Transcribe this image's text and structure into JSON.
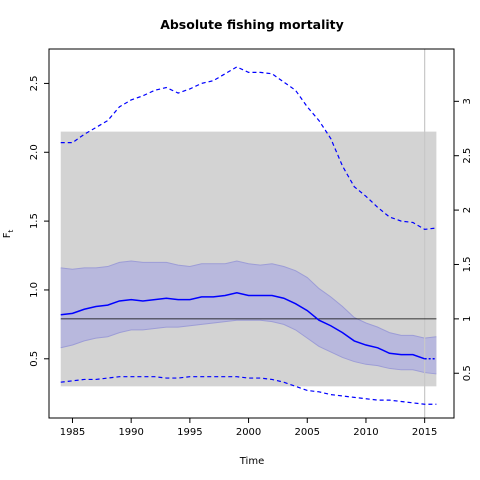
{
  "chart_data": {
    "type": "line",
    "title": "Absolute fishing mortality",
    "xlabel": "Time",
    "ylabel": "F",
    "ylabel_subscript": "t",
    "xlim": [
      1983.0,
      2017.5
    ],
    "ylim": [
      0.07,
      2.75
    ],
    "x_ticks": [
      1985,
      1990,
      1995,
      2000,
      2005,
      2010,
      2015
    ],
    "y_ticks": [
      0.5,
      1.0,
      1.5,
      2.0,
      2.5
    ],
    "y_tick_labels": [
      "0.5",
      "1.0",
      "1.5",
      "2.0",
      "2.5"
    ],
    "y2_ratio": 0.79,
    "y2_ticks": [
      0.5,
      1,
      1.5,
      2,
      2.5,
      3
    ],
    "y2_tick_labels": [
      "0.5",
      "1",
      "1.5",
      "2",
      "2.5",
      "3"
    ],
    "reference_line_y": 0.79,
    "vertical_line_x": 2015,
    "shaded_region": {
      "x": [
        1984,
        2016
      ],
      "y": [
        0.3,
        2.15
      ]
    },
    "colors": {
      "estimate": "#0000ff",
      "ci_fill": "#b8b8dd",
      "ci_edge": "#9d9dd6",
      "region_fill": "#d3d3d3",
      "reference_line": "#000000",
      "vertical_line": "#c8c8c8"
    },
    "series": [
      {
        "role": "estimate",
        "x": [
          1984,
          1985,
          1986,
          1987,
          1988,
          1989,
          1990,
          1991,
          1992,
          1993,
          1994,
          1995,
          1996,
          1997,
          1998,
          1999,
          2000,
          2001,
          2002,
          2003,
          2004,
          2005,
          2006,
          2007,
          2008,
          2009,
          2010,
          2011,
          2012,
          2013,
          2014,
          2015
        ],
        "y": [
          0.82,
          0.83,
          0.86,
          0.88,
          0.89,
          0.92,
          0.93,
          0.92,
          0.93,
          0.94,
          0.93,
          0.93,
          0.95,
          0.95,
          0.96,
          0.98,
          0.96,
          0.96,
          0.96,
          0.94,
          0.9,
          0.85,
          0.78,
          0.74,
          0.69,
          0.63,
          0.6,
          0.58,
          0.54,
          0.53,
          0.53,
          0.5
        ]
      },
      {
        "role": "estimate-projection",
        "x": [
          2015,
          2016
        ],
        "y": [
          0.5,
          0.5
        ]
      },
      {
        "role": "ci-upper",
        "x": [
          1984,
          1985,
          1986,
          1987,
          1988,
          1989,
          1990,
          1991,
          1992,
          1993,
          1994,
          1995,
          1996,
          1997,
          1998,
          1999,
          2000,
          2001,
          2002,
          2003,
          2004,
          2005,
          2006,
          2007,
          2008,
          2009,
          2010,
          2011,
          2012,
          2013,
          2014,
          2015,
          2016
        ],
        "y": [
          1.16,
          1.15,
          1.16,
          1.16,
          1.17,
          1.2,
          1.21,
          1.2,
          1.2,
          1.2,
          1.18,
          1.17,
          1.19,
          1.19,
          1.19,
          1.21,
          1.19,
          1.18,
          1.19,
          1.17,
          1.14,
          1.09,
          1.01,
          0.95,
          0.88,
          0.8,
          0.76,
          0.73,
          0.69,
          0.67,
          0.67,
          0.65,
          0.66
        ]
      },
      {
        "role": "ci-lower",
        "x": [
          1984,
          1985,
          1986,
          1987,
          1988,
          1989,
          1990,
          1991,
          1992,
          1993,
          1994,
          1995,
          1996,
          1997,
          1998,
          1999,
          2000,
          2001,
          2002,
          2003,
          2004,
          2005,
          2006,
          2007,
          2008,
          2009,
          2010,
          2011,
          2012,
          2013,
          2014,
          2015,
          2016
        ],
        "y": [
          0.58,
          0.6,
          0.63,
          0.65,
          0.66,
          0.69,
          0.71,
          0.71,
          0.72,
          0.73,
          0.73,
          0.74,
          0.75,
          0.76,
          0.77,
          0.78,
          0.78,
          0.78,
          0.77,
          0.75,
          0.71,
          0.65,
          0.59,
          0.55,
          0.51,
          0.48,
          0.46,
          0.45,
          0.43,
          0.42,
          0.42,
          0.4,
          0.39
        ]
      },
      {
        "role": "dashed-upper",
        "x": [
          1984,
          1985,
          1986,
          1987,
          1988,
          1989,
          1990,
          1991,
          1992,
          1993,
          1994,
          1995,
          1996,
          1997,
          1998,
          1999,
          2000,
          2001,
          2002,
          2003,
          2004,
          2005,
          2006,
          2007,
          2008,
          2009,
          2010,
          2011,
          2012,
          2013,
          2014,
          2015,
          2016
        ],
        "y": [
          2.07,
          2.07,
          2.13,
          2.18,
          2.23,
          2.33,
          2.38,
          2.41,
          2.45,
          2.47,
          2.43,
          2.46,
          2.5,
          2.52,
          2.57,
          2.62,
          2.58,
          2.58,
          2.57,
          2.51,
          2.45,
          2.33,
          2.23,
          2.1,
          1.9,
          1.75,
          1.68,
          1.6,
          1.53,
          1.5,
          1.49,
          1.44,
          1.45
        ]
      },
      {
        "role": "dashed-lower",
        "x": [
          1984,
          1985,
          1986,
          1987,
          1988,
          1989,
          1990,
          1991,
          1992,
          1993,
          1994,
          1995,
          1996,
          1997,
          1998,
          1999,
          2000,
          2001,
          2002,
          2003,
          2004,
          2005,
          2006,
          2007,
          2008,
          2009,
          2010,
          2011,
          2012,
          2013,
          2014,
          2015,
          2016
        ],
        "y": [
          0.33,
          0.34,
          0.35,
          0.35,
          0.36,
          0.37,
          0.37,
          0.37,
          0.37,
          0.36,
          0.36,
          0.37,
          0.37,
          0.37,
          0.37,
          0.37,
          0.36,
          0.36,
          0.35,
          0.33,
          0.3,
          0.27,
          0.26,
          0.24,
          0.23,
          0.22,
          0.21,
          0.2,
          0.2,
          0.19,
          0.18,
          0.17,
          0.17
        ]
      }
    ]
  }
}
